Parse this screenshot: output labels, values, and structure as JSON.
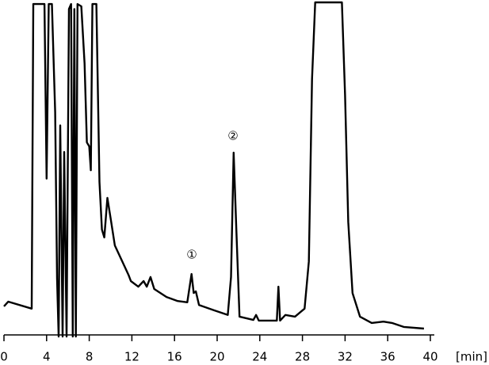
{
  "chart_data": {
    "type": "line",
    "x_label": "[min]",
    "annotations": [
      "①",
      "②"
    ],
    "xlim": [
      0,
      40
    ],
    "xticks": [
      0,
      4,
      8,
      12,
      16,
      20,
      24,
      28,
      32,
      36,
      40
    ],
    "ylim": [
      0,
      100
    ],
    "series": [
      {
        "color": "#000000",
        "x": [
          0,
          0.4,
          2.6,
          2.75,
          3.8,
          4.0,
          4.2,
          4.5,
          4.8,
          4.98,
          5.13,
          5.28,
          5.5,
          5.65,
          5.87,
          6.1,
          6.3,
          6.45,
          6.6,
          6.74,
          6.9,
          7.26,
          7.56,
          7.78,
          8.0,
          8.15,
          8.3,
          8.67,
          8.96,
          9.19,
          9.41,
          9.7,
          10.0,
          10.4,
          11.1,
          11.7,
          11.9,
          12.6,
          13.1,
          13.4,
          13.75,
          14.1,
          15.25,
          16.3,
          17.2,
          17.6,
          17.8,
          18.0,
          18.3,
          19.7,
          21.0,
          21.3,
          21.55,
          21.8,
          22.1,
          23.4,
          23.65,
          23.9,
          25.6,
          25.75,
          25.9,
          26.4,
          27.3,
          28.2,
          28.6,
          28.9,
          29.2,
          31.7,
          32.0,
          32.3,
          32.7,
          33.4,
          34.5,
          35.6,
          36.4,
          37.5,
          39.4
        ],
        "values": [
          8.6,
          10,
          7.9,
          99.5,
          99.5,
          47,
          99.5,
          99.5,
          67,
          17,
          -0.5,
          63,
          -0.5,
          55,
          -0.5,
          98,
          99.5,
          -0.5,
          98,
          -0.5,
          99.5,
          98.8,
          81.7,
          57.9,
          56.7,
          49.5,
          99.5,
          99.5,
          46,
          31.7,
          29.3,
          41.2,
          35.2,
          26.9,
          22.1,
          17.9,
          16.2,
          14.5,
          16.2,
          14.5,
          17.4,
          13.8,
          11.4,
          10.2,
          9.8,
          18.3,
          12.6,
          13.1,
          9,
          7.4,
          6,
          17.4,
          54.8,
          31.7,
          5.5,
          4.5,
          6,
          4.3,
          4.3,
          14.5,
          4.3,
          6,
          5.5,
          7.9,
          22.1,
          76.9,
          100,
          100,
          72,
          34,
          12.6,
          5.5,
          3.6,
          4.0,
          3.6,
          2.4,
          1.9
        ]
      }
    ]
  }
}
